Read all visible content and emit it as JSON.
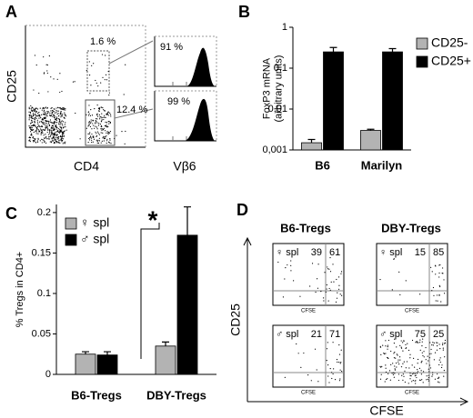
{
  "panels": {
    "a": {
      "letter": "A",
      "y_label": "CD25",
      "x_label": "CD4",
      "hist_label": "Vβ6",
      "gates": [
        "1.6 %",
        "12.4 %"
      ],
      "hist_values": [
        "91 %",
        "99 %"
      ]
    },
    "d": {
      "letter": "D",
      "columns": [
        "B6-Tregs",
        "DBY-Tregs"
      ],
      "rows": [
        "♀ spl",
        "♂ spl"
      ],
      "y_label": "CD25",
      "x_label": "CFSE",
      "plot_x_label": "CFSE",
      "plots": [
        [
          "39",
          "61"
        ],
        [
          "15",
          "85"
        ],
        [
          "21",
          "71"
        ],
        [
          "75",
          "25"
        ]
      ]
    }
  },
  "chart_data": [
    {
      "type": "bar",
      "panel": "B",
      "y_label": [
        "FoxP3 mRNA",
        "(arbitrary units)"
      ],
      "log_scale": true,
      "categories": [
        "B6",
        "Marilyn"
      ],
      "series": [
        {
          "name": "CD25-",
          "color": "#b3b3b3",
          "values": [
            0.0015,
            0.003
          ],
          "errors": [
            0.0003,
            0.0002
          ]
        },
        {
          "name": "CD25+",
          "color": "#000000",
          "values": [
            0.25,
            0.25
          ],
          "errors": [
            0.07,
            0.05
          ]
        }
      ],
      "ylim": [
        0.001,
        1
      ],
      "yticks": [
        {
          "value": 0.001,
          "label": "0,001"
        },
        {
          "value": 0.01,
          "label": "0,01"
        },
        {
          "value": 0.1,
          "label": "0,1"
        },
        1
      ]
    },
    {
      "type": "bar",
      "panel": "C",
      "y_label": "% Tregs in CD4+",
      "annotation": "*",
      "categories": [
        "B6-Tregs",
        "DBY-Tregs"
      ],
      "series": [
        {
          "name": "♀ spl",
          "color": "#b3b3b3",
          "values": [
            0.025,
            0.035
          ],
          "errors": [
            0.003,
            0.005
          ]
        },
        {
          "name": "♂ spl",
          "color": "#000000",
          "values": [
            0.024,
            0.172
          ],
          "errors": [
            0.004,
            0.035
          ]
        }
      ],
      "ylim": [
        0,
        0.21
      ],
      "yticks": [
        0,
        0.05,
        0.1,
        0.15,
        0.2
      ]
    }
  ]
}
